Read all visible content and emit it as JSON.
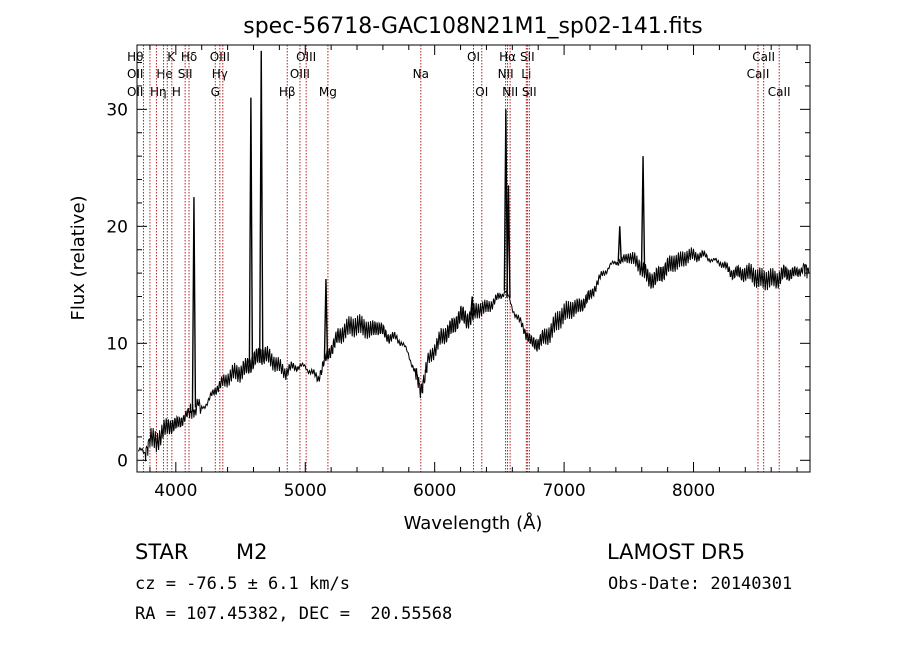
{
  "chart_data": {
    "type": "line",
    "title": "spec-56718-GAC108N21M1_sp02-141.fits",
    "xlabel": "Wavelength (Å)",
    "ylabel": "Flux (relative)",
    "xlim": [
      3700,
      8900
    ],
    "ylim": [
      -1,
      35.5
    ],
    "xticks": [
      4000,
      5000,
      6000,
      7000,
      8000
    ],
    "yticks": [
      0,
      10,
      20,
      30
    ],
    "grid": false,
    "legend": "none",
    "series": [
      {
        "x": [
          3710,
          3760,
          3800,
          3850,
          3900,
          3950,
          4000,
          4050,
          4100,
          4140,
          4200,
          4250,
          4300,
          4350,
          4400,
          4450,
          4500,
          4550,
          4600,
          4650,
          4700,
          4750,
          4800,
          4850,
          4900,
          4950,
          5000,
          5050,
          5100,
          5150,
          5200,
          5250,
          5300,
          5350,
          5400,
          5450,
          5500,
          5550,
          5600,
          5650,
          5700,
          5750,
          5800,
          5850,
          5890,
          5920,
          5950,
          6000,
          6050,
          6100,
          6150,
          6200,
          6250,
          6300,
          6350,
          6400,
          6450,
          6500,
          6550,
          6600,
          6650,
          6700,
          6750,
          6800,
          6850,
          6900,
          6950,
          7000,
          7050,
          7100,
          7150,
          7200,
          7250,
          7300,
          7350,
          7400,
          7450,
          7500,
          7550,
          7600,
          7650,
          7700,
          7750,
          7800,
          7850,
          7900,
          7950,
          8000,
          8050,
          8100,
          8150,
          8200,
          8250,
          8300,
          8350,
          8400,
          8450,
          8500,
          8550,
          8600,
          8650,
          8700,
          8750,
          8800,
          8850,
          8890
        ],
        "y": [
          1,
          0.5,
          2,
          1.5,
          2.5,
          3,
          3,
          3.5,
          4,
          4.5,
          4.5,
          5,
          6,
          6.5,
          7,
          7.5,
          7.5,
          8,
          8.5,
          9,
          9,
          8.5,
          8,
          7.5,
          8,
          8,
          8,
          7.5,
          7,
          8.5,
          9.5,
          10.5,
          11,
          11.5,
          11.5,
          11.5,
          11,
          11.5,
          11,
          10.5,
          10.5,
          10,
          9,
          7.5,
          6,
          7,
          8.5,
          9.5,
          10.5,
          11,
          11.5,
          12.5,
          12,
          12.5,
          13,
          13,
          13.5,
          14,
          14.5,
          13,
          12,
          11,
          10,
          10,
          10.5,
          11,
          12,
          12.5,
          13,
          13,
          13.5,
          14,
          15,
          16,
          16.5,
          17,
          17,
          17.5,
          17,
          16.5,
          15.5,
          15.5,
          16,
          16.5,
          17,
          17,
          17.5,
          17.5,
          17.5,
          17.5,
          17,
          17,
          16.5,
          16,
          16,
          16,
          16,
          15.5,
          15.5,
          15.5,
          15.5,
          16,
          16,
          16,
          16.5,
          16
        ]
      }
    ],
    "spikes": [
      {
        "x": 4140,
        "y": 22.5
      },
      {
        "x": 4580,
        "y": 31
      },
      {
        "x": 4660,
        "y": 35
      },
      {
        "x": 5160,
        "y": 15.5
      },
      {
        "x": 6290,
        "y": 14
      },
      {
        "x": 6550,
        "y": 30
      },
      {
        "x": 6570,
        "y": 23.5
      },
      {
        "x": 7430,
        "y": 20
      },
      {
        "x": 7610,
        "y": 26
      }
    ],
    "line_markers": [
      {
        "wavelength": 3750,
        "labels": [
          {
            "text": "Hθ",
            "row": 0,
            "anchor": "end"
          },
          {
            "text": "OII",
            "row": 1,
            "anchor": "end"
          },
          {
            "text": "OII",
            "row": 2,
            "anchor": "end"
          }
        ]
      },
      {
        "wavelength": 3800,
        "labels": [
          {
            "text": "Hη",
            "row": 2,
            "anchor": "start"
          }
        ]
      },
      {
        "wavelength": 3850,
        "labels": [
          {
            "text": "He",
            "row": 1,
            "anchor": "start"
          }
        ]
      },
      {
        "wavelength": 3905,
        "labels": []
      },
      {
        "wavelength": 3934,
        "labels": [
          {
            "text": "K",
            "row": 0,
            "anchor": "start"
          }
        ]
      },
      {
        "wavelength": 3969,
        "labels": [
          {
            "text": "H",
            "row": 2,
            "anchor": "start"
          }
        ]
      },
      {
        "wavelength": 4072,
        "labels": [
          {
            "text": "SII",
            "row": 1,
            "anchor": "middle"
          }
        ]
      },
      {
        "wavelength": 4102,
        "labels": [
          {
            "text": "Hδ",
            "row": 0,
            "anchor": "middle"
          }
        ]
      },
      {
        "wavelength": 4305,
        "labels": [
          {
            "text": "G",
            "row": 2,
            "anchor": "middle"
          }
        ]
      },
      {
        "wavelength": 4340,
        "labels": [
          {
            "text": "OIII",
            "row": 0,
            "anchor": "middle"
          },
          {
            "text": "Hγ",
            "row": 1,
            "anchor": "middle"
          }
        ]
      },
      {
        "wavelength": 4363,
        "labels": []
      },
      {
        "wavelength": 4861,
        "labels": [
          {
            "text": "Hβ",
            "row": 2,
            "anchor": "middle"
          }
        ]
      },
      {
        "wavelength": 4959,
        "labels": [
          {
            "text": "OIII",
            "row": 1,
            "anchor": "middle"
          }
        ]
      },
      {
        "wavelength": 5007,
        "labels": [
          {
            "text": "OIII",
            "row": 0,
            "anchor": "middle"
          }
        ]
      },
      {
        "wavelength": 5175,
        "labels": [
          {
            "text": "Mg",
            "row": 2,
            "anchor": "middle"
          }
        ]
      },
      {
        "wavelength": 5893,
        "labels": [
          {
            "text": "Na",
            "row": 1,
            "anchor": "middle"
          }
        ]
      },
      {
        "wavelength": 6300,
        "labels": [
          {
            "text": "OI",
            "row": 0,
            "anchor": "middle"
          }
        ]
      },
      {
        "wavelength": 6364,
        "labels": [
          {
            "text": "OI",
            "row": 2,
            "anchor": "middle"
          }
        ]
      },
      {
        "wavelength": 6548,
        "labels": [
          {
            "text": "NII",
            "row": 1,
            "anchor": "middle"
          }
        ]
      },
      {
        "wavelength": 6563,
        "labels": [
          {
            "text": "Hα",
            "row": 0,
            "anchor": "middle"
          }
        ]
      },
      {
        "wavelength": 6583,
        "labels": [
          {
            "text": "NII",
            "row": 2,
            "anchor": "middle"
          }
        ]
      },
      {
        "wavelength": 6708,
        "labels": [
          {
            "text": "Li",
            "row": 1,
            "anchor": "middle"
          }
        ]
      },
      {
        "wavelength": 6716,
        "labels": [
          {
            "text": "SII",
            "row": 0,
            "anchor": "middle"
          }
        ]
      },
      {
        "wavelength": 6731,
        "labels": [
          {
            "text": "SII",
            "row": 2,
            "anchor": "middle"
          }
        ]
      },
      {
        "wavelength": 8498,
        "labels": [
          {
            "text": "CaII",
            "row": 1,
            "anchor": "middle"
          }
        ]
      },
      {
        "wavelength": 8542,
        "labels": [
          {
            "text": "CaII",
            "row": 0,
            "anchor": "middle"
          }
        ]
      },
      {
        "wavelength": 8662,
        "labels": [
          {
            "text": "CaII",
            "row": 2,
            "anchor": "middle"
          }
        ]
      }
    ]
  },
  "colors": {
    "spectrum": "#000000",
    "axes": "#000000",
    "marker_lines": "#b22222",
    "background": "#ffffff"
  },
  "info": {
    "class_label": "STAR",
    "subclass_label": "M2",
    "survey_label": "LAMOST DR5",
    "redshift_text": "cz = -76.5 ± 6.1 km/s",
    "obs_date_text": "Obs-Date: 20140301",
    "coords_text": "RA = 107.45382, DEC =  20.55568"
  }
}
